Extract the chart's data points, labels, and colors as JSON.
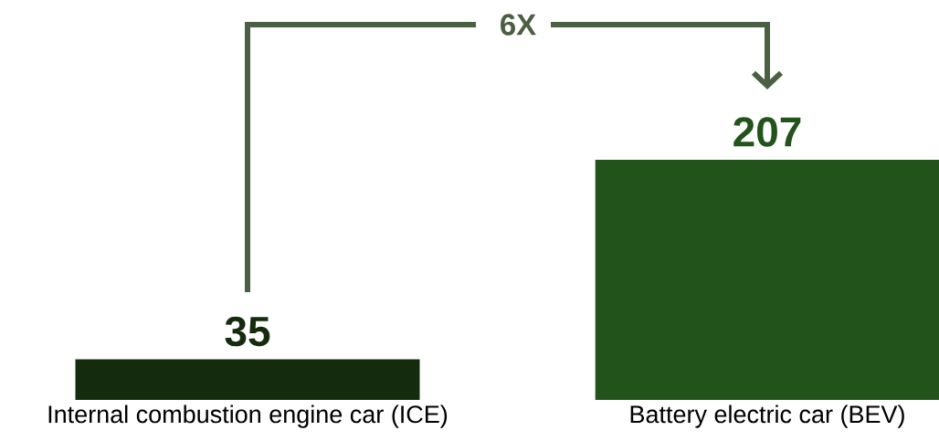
{
  "chart_data": {
    "type": "bar",
    "categories": [
      "Internal combustion engine car (ICE)",
      "Battery electric car (BEV)"
    ],
    "values": [
      35,
      207
    ],
    "colors": [
      "#142c0d",
      "#22531a"
    ],
    "data_labels": true,
    "annotations": [
      "6X"
    ]
  }
}
